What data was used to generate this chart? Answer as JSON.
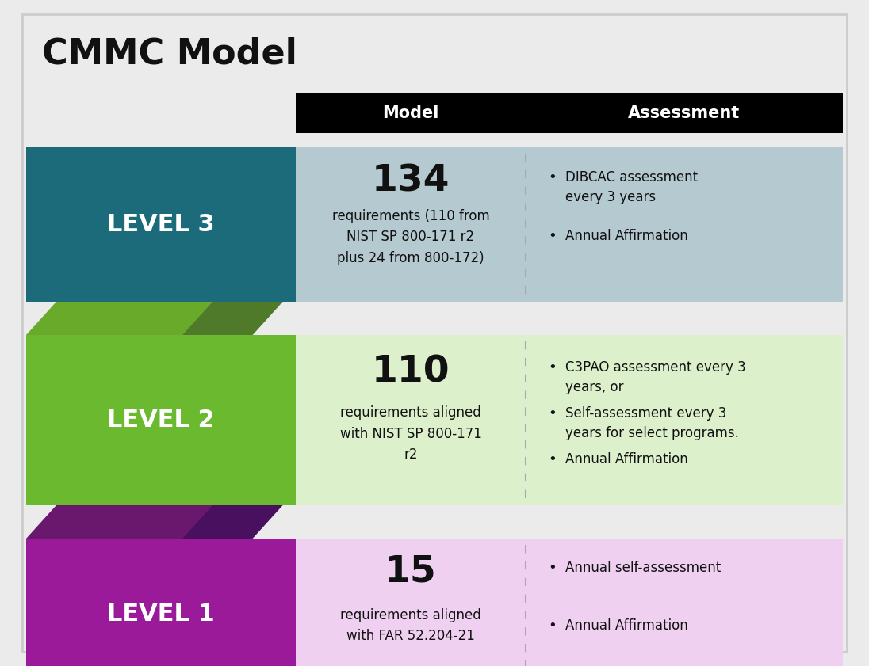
{
  "title": "CMMC Model",
  "bg_color": "#ebebeb",
  "header_bg": "#000000",
  "header_model": "Model",
  "header_assessment": "Assessment",
  "header_text_color": "#ffffff",
  "levels": [
    {
      "label": "LEVEL 3",
      "level_bg": "#1b6b7b",
      "row_bg": "#b5c9d0",
      "number": "134",
      "model_text": "requirements (110 from\nNIST SP 800-171 r2\nplus 24 from 800-172)",
      "assessment_bullets": [
        "DIBCAC assessment\nevery 3 years",
        "Annual Affirmation"
      ],
      "chevron_top_color": "#4e7a2a",
      "chevron_bottom_color": "#6aaa2a"
    },
    {
      "label": "LEVEL 2",
      "level_bg": "#6ab92e",
      "row_bg": "#ddf0cc",
      "number": "110",
      "model_text": "requirements aligned\nwith NIST SP 800-171\nr2",
      "assessment_bullets": [
        "C3PAO assessment every 3\nyears, or",
        "Self-assessment every 3\nyears for select programs.",
        "Annual Affirmation"
      ],
      "chevron_top_color": "#4a1060",
      "chevron_bottom_color": "#6a186e"
    },
    {
      "label": "LEVEL 1",
      "level_bg": "#9a1a9a",
      "row_bg": "#f0d0f0",
      "number": "15",
      "model_text": "requirements aligned\nwith FAR 52.204-21",
      "assessment_bullets": [
        "Annual self-assessment",
        "Annual Affirmation"
      ]
    }
  ]
}
